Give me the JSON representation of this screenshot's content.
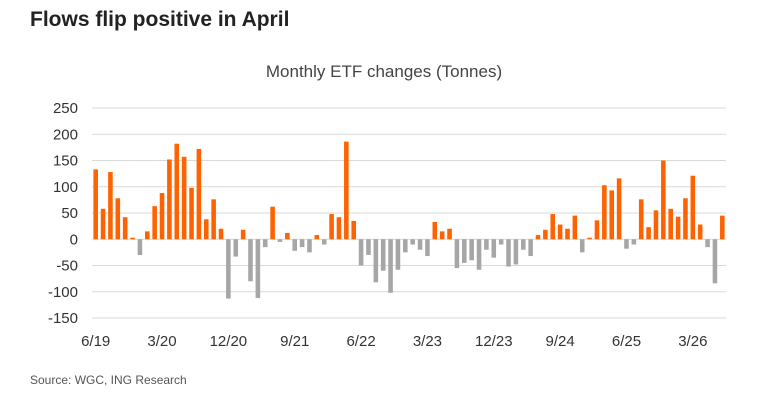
{
  "header": {
    "title": "Flows flip positive in April"
  },
  "footer": {
    "source": "Source: WGC, ING Research"
  },
  "colors": {
    "positive": "#FF6200",
    "negative": "#A6A6A6",
    "grid": "#D9D9D9"
  },
  "chart_data": {
    "type": "bar",
    "title": "Monthly ETF changes (Tonnes)",
    "xlabel": "",
    "ylabel": "",
    "ylim": [
      -150,
      250
    ],
    "yticks": [
      250,
      200,
      150,
      100,
      50,
      0,
      -50,
      -100,
      -150
    ],
    "x_tick_labels": [
      {
        "label": "6/19",
        "index": 0
      },
      {
        "label": "3/20",
        "index": 9
      },
      {
        "label": "12/20",
        "index": 18
      },
      {
        "label": "9/21",
        "index": 27
      },
      {
        "label": "6/22",
        "index": 36
      },
      {
        "label": "3/23",
        "index": 45
      },
      {
        "label": "12/23",
        "index": 54
      },
      {
        "label": "9/24",
        "index": 63
      },
      {
        "label": "6/25",
        "index": 72
      },
      {
        "label": "3/26",
        "index": 81
      }
    ],
    "grid": true,
    "legend": "none",
    "values": [
      133,
      58,
      128,
      78,
      42,
      3,
      -30,
      15,
      63,
      88,
      152,
      182,
      157,
      98,
      172,
      38,
      76,
      20,
      -113,
      -33,
      18,
      -80,
      -112,
      -15,
      62,
      -5,
      12,
      -22,
      -15,
      -25,
      8,
      -10,
      48,
      42,
      186,
      35,
      -50,
      -30,
      -82,
      -60,
      -102,
      -58,
      -25,
      -10,
      -20,
      -32,
      33,
      15,
      20,
      -55,
      -45,
      -40,
      -58,
      -20,
      -35,
      -10,
      -52,
      -48,
      -20,
      -32,
      8,
      18,
      48,
      28,
      20,
      45,
      -25,
      3,
      36,
      103,
      93,
      116,
      -18,
      -10,
      76,
      23,
      55,
      150,
      58,
      43,
      78,
      121,
      28,
      -15,
      -84,
      45
    ]
  }
}
